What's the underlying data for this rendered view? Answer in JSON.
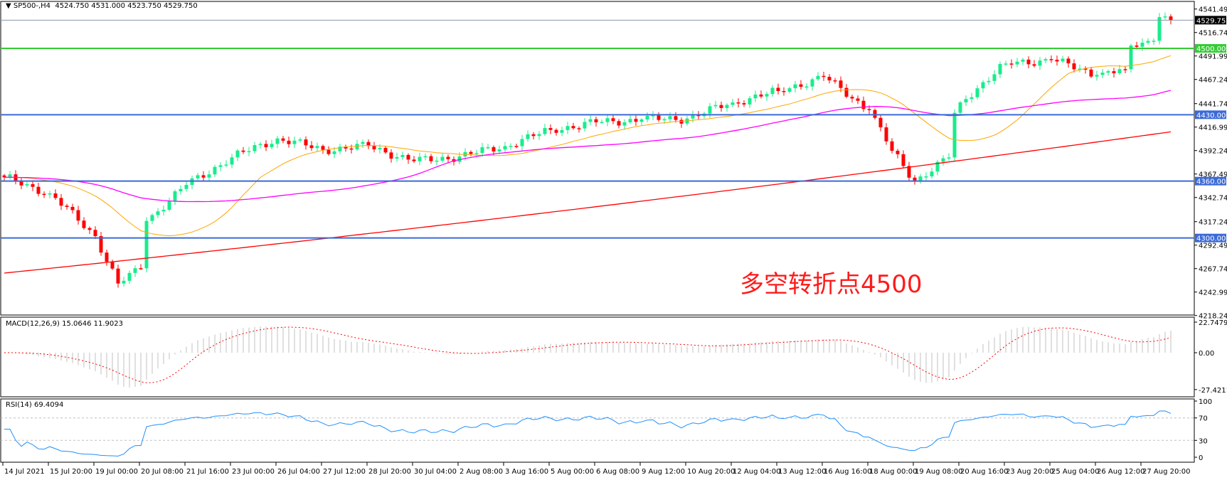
{
  "header": {
    "symbol": "SP500-,H4",
    "ohlc": "4524.750 4531.000 4523.750 4529.750"
  },
  "macd": {
    "label": "MACD(12,26,9) 15.0646 11.9023",
    "ticks": [
      "22.7479",
      "0.00",
      "-27.4211"
    ]
  },
  "rsi": {
    "label": "RSI(14) 69.4094",
    "ticks": [
      "100",
      "70",
      "30",
      "0"
    ]
  },
  "annotation": "多空转折点4500",
  "colors": {
    "bull": "#19ec8c",
    "bear": "#ff0000",
    "ma_fast": "#ffa500",
    "ma_mid": "#ff00ff",
    "ma_slow": "#ff0000",
    "level_green": "#33cc33",
    "level_blue": "#3b6ad8",
    "macd_signal": "#ff0000",
    "macd_hist": "#c0c0c0",
    "rsi_line": "#1e90ff"
  },
  "chart_data": {
    "type": "candlestick",
    "symbol": "SP500-",
    "timeframe": "H4",
    "y_ticks": [
      "4541.490",
      "4516.740",
      "4491.990",
      "4467.240",
      "4441.740",
      "4416.990",
      "4392.240",
      "4367.490",
      "4342.740",
      "4317.240",
      "4292.490",
      "4267.740",
      "4242.990",
      "4218.240"
    ],
    "ylim": [
      4218.24,
      4541.49
    ],
    "current_price": "4529.750",
    "levels": [
      {
        "value": "4500.000",
        "color": "#33cc33"
      },
      {
        "value": "4430.000",
        "color": "#3b6ad8"
      },
      {
        "value": "4360.000",
        "color": "#3b6ad8"
      },
      {
        "value": "4300.000",
        "color": "#3b6ad8"
      }
    ],
    "x_labels": [
      "14 Jul 2021",
      "15 Jul 20:00",
      "19 Jul 00:00",
      "20 Jul 08:00",
      "21 Jul 16:00",
      "23 Jul 00:00",
      "26 Jul 04:00",
      "27 Jul 12:00",
      "28 Jul 20:00",
      "30 Jul 04:00",
      "2 Aug 08:00",
      "3 Aug 16:00",
      "5 Aug 00:00",
      "6 Aug 08:00",
      "9 Aug 12:00",
      "10 Aug 20:00",
      "12 Aug 04:00",
      "13 Aug 12:00",
      "16 Aug 16:00",
      "18 Aug 00:00",
      "19 Aug 08:00",
      "20 Aug 16:00",
      "23 Aug 20:00",
      "25 Aug 04:00",
      "26 Aug 12:00",
      "27 Aug 20:00"
    ],
    "approx_closes": [
      {
        "t": "14 Jul 12:00",
        "close": 4364
      },
      {
        "t": "15 Jul 20:00",
        "close": 4347
      },
      {
        "t": "19 Jul 00:00",
        "close": 4302
      },
      {
        "t": "19 Jul 16:00",
        "close": 4252
      },
      {
        "t": "20 Jul 08:00",
        "close": 4268
      },
      {
        "t": "20 Jul 12:00",
        "close": 4318
      },
      {
        "t": "21 Jul 16:00",
        "close": 4356
      },
      {
        "t": "23 Jul 00:00",
        "close": 4385
      },
      {
        "t": "26 Jul 04:00",
        "close": 4405
      },
      {
        "t": "27 Jul 12:00",
        "close": 4393
      },
      {
        "t": "28 Jul 20:00",
        "close": 4397
      },
      {
        "t": "30 Jul 04:00",
        "close": 4381
      },
      {
        "t": "2 Aug 08:00",
        "close": 4386
      },
      {
        "t": "3 Aug 16:00",
        "close": 4397
      },
      {
        "t": "5 Aug 00:00",
        "close": 4414
      },
      {
        "t": "6 Aug 08:00",
        "close": 4422
      },
      {
        "t": "9 Aug 12:00",
        "close": 4425
      },
      {
        "t": "10 Aug 20:00",
        "close": 4426
      },
      {
        "t": "12 Aug 04:00",
        "close": 4443
      },
      {
        "t": "13 Aug 12:00",
        "close": 4455
      },
      {
        "t": "16 Aug 16:00",
        "close": 4470
      },
      {
        "t": "18 Aug 00:00",
        "close": 4435
      },
      {
        "t": "18 Aug 16:00",
        "close": 4392
      },
      {
        "t": "19 Aug 08:00",
        "close": 4360
      },
      {
        "t": "20 Aug 08:00",
        "close": 4385
      },
      {
        "t": "20 Aug 12:00",
        "close": 4432
      },
      {
        "t": "20 Aug 16:00",
        "close": 4443
      },
      {
        "t": "23 Aug 20:00",
        "close": 4484
      },
      {
        "t": "25 Aug 04:00",
        "close": 4488
      },
      {
        "t": "26 Aug 12:00",
        "close": 4472
      },
      {
        "t": "27 Aug 08:00",
        "close": 4478
      },
      {
        "t": "27 Aug 12:00",
        "close": 4503
      },
      {
        "t": "27 Aug 20:00",
        "close": 4506
      },
      {
        "t": "28 Aug 04:00",
        "close": 4508
      },
      {
        "t": "28 Aug 08:00",
        "close": 4533
      },
      {
        "t": "28 Aug 16:00",
        "close": 4529.75
      }
    ],
    "ma_slow": {
      "start": 4263,
      "end": 4412
    },
    "ma_fast_period": 21,
    "ma_mid_period": 55,
    "macd_params": [
      12,
      26,
      9
    ],
    "macd_ylim": [
      -27.4211,
      22.7479
    ],
    "rsi_period": 14,
    "rsi_levels": [
      30,
      70
    ],
    "rsi_ylim": [
      0,
      100
    ]
  }
}
